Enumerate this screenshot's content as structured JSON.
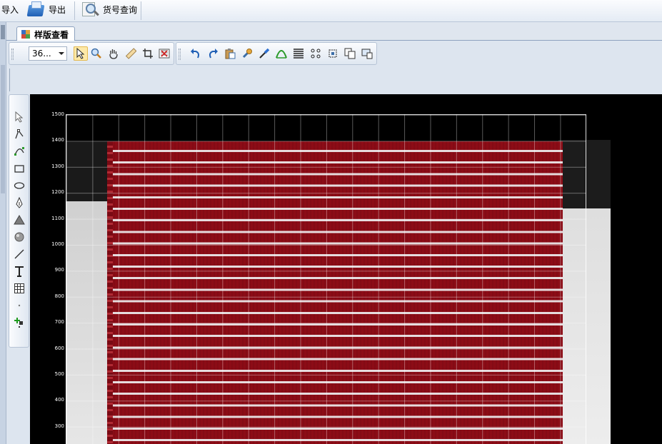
{
  "ribbon": {
    "import_label": "导入",
    "export_label": "导出",
    "lookup_label": "货号查询"
  },
  "tab": {
    "label": "样版查看"
  },
  "toolbar": {
    "zoom_value": "36..."
  },
  "canvas": {
    "y_ticks": [
      "1500",
      "1400",
      "1300",
      "1200",
      "1100",
      "1000",
      "900",
      "800",
      "700",
      "600",
      "500",
      "400",
      "300"
    ]
  },
  "colors": {
    "fabric_red": "#8c0c16",
    "stripe_white": "#ebe6e8",
    "canvas_bg": "#000000"
  }
}
